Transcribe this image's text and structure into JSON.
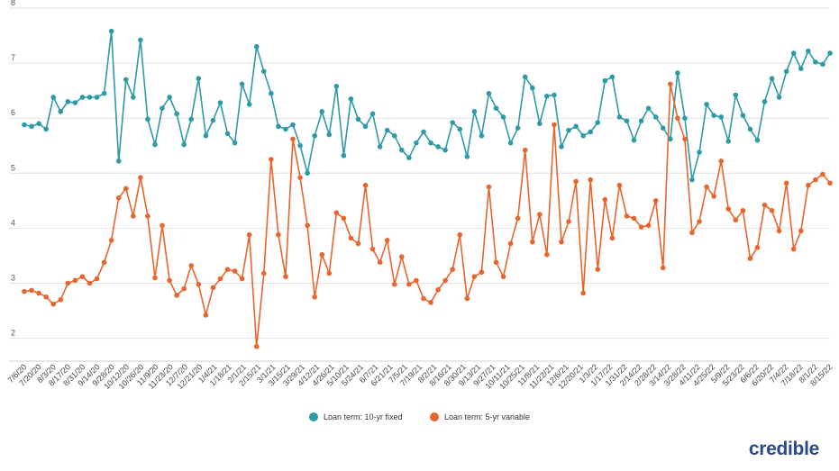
{
  "chart_data": {
    "type": "line",
    "y_ticks": [
      "2",
      "3",
      "4",
      "5",
      "6",
      "7",
      "8"
    ],
    "ylim": [
      1.6,
      8.0
    ],
    "grid": true,
    "legend_position": "bottom",
    "x_tick_labels": [
      "7/6/20",
      "7/20/20",
      "8/3/20",
      "8/17/20",
      "8/31/20",
      "9/14/20",
      "9/28/20",
      "10/12/20",
      "10/26/20",
      "11/9/20",
      "11/23/20",
      "12/7/20",
      "12/21/20",
      "1/4/21",
      "1/18/21",
      "2/1/21",
      "2/15/21",
      "3/1/21",
      "3/15/21",
      "3/29/21",
      "4/12/21",
      "4/26/21",
      "5/10/21",
      "5/24/21",
      "6/7/21",
      "6/21/21",
      "7/5/21",
      "7/19/21",
      "8/2/21",
      "8/16/21",
      "8/30/21",
      "9/13/21",
      "9/27/21",
      "10/11/21",
      "10/25/21",
      "11/8/21",
      "11/22/21",
      "12/6/21",
      "12/20/21",
      "1/3/22",
      "1/17/22",
      "1/31/22",
      "2/14/22",
      "2/28/22",
      "3/14/22",
      "3/28/22",
      "4/11/22",
      "4/25/22",
      "5/9/22",
      "5/23/22",
      "6/6/22",
      "6/20/22",
      "7/4/22",
      "7/18/22",
      "8/1/22",
      "8/15/22"
    ],
    "series": [
      {
        "name": "Loan term: 10-yr fixed",
        "color": "#2e9aa7",
        "values": [
          5.88,
          5.85,
          5.9,
          5.8,
          6.38,
          6.12,
          6.3,
          6.28,
          6.38,
          6.38,
          6.38,
          6.45,
          7.58,
          5.22,
          6.7,
          6.38,
          7.42,
          5.98,
          5.52,
          6.18,
          6.38,
          6.08,
          5.52,
          5.98,
          6.72,
          5.68,
          5.96,
          6.28,
          5.72,
          5.55,
          6.62,
          6.25,
          7.3,
          6.85,
          6.45,
          5.85,
          5.8,
          5.88,
          5.5,
          5.0,
          5.68,
          6.12,
          5.7,
          6.58,
          5.32,
          6.35,
          5.98,
          5.85,
          6.08,
          5.48,
          5.78,
          5.68,
          5.42,
          5.28,
          5.55,
          5.75,
          5.55,
          5.48,
          5.42,
          5.92,
          5.8,
          5.3,
          6.12,
          5.68,
          6.45,
          6.18,
          6.02,
          5.55,
          5.82,
          6.75,
          6.55,
          5.9,
          6.4,
          6.42,
          5.48,
          5.78,
          5.85,
          5.68,
          5.75,
          5.92,
          6.68,
          6.75,
          6.02,
          5.95,
          5.6,
          5.95,
          6.18,
          6.02,
          5.82,
          5.62,
          6.82,
          6.0,
          4.88,
          5.38,
          6.25,
          6.05,
          6.02,
          5.58,
          6.42,
          6.05,
          5.8,
          5.6,
          6.3,
          6.72,
          6.38,
          6.85,
          7.18,
          6.9,
          7.22,
          7.02,
          6.98,
          7.18
        ]
      },
      {
        "name": "Loan term: 5-yr variable",
        "color": "#e8662e",
        "values": [
          2.85,
          2.87,
          2.82,
          2.75,
          2.62,
          2.7,
          3.0,
          3.05,
          3.12,
          3.0,
          3.08,
          3.38,
          3.78,
          4.55,
          4.72,
          4.22,
          4.92,
          4.22,
          3.1,
          4.05,
          3.05,
          2.78,
          2.9,
          3.32,
          2.98,
          2.42,
          2.92,
          3.08,
          3.25,
          3.22,
          3.08,
          3.88,
          1.85,
          3.18,
          5.25,
          3.88,
          3.12,
          5.62,
          4.92,
          4.05,
          2.75,
          3.52,
          3.18,
          4.28,
          4.18,
          3.82,
          3.72,
          4.78,
          3.62,
          3.38,
          3.78,
          2.98,
          3.48,
          2.98,
          3.05,
          2.72,
          2.65,
          2.88,
          3.05,
          3.25,
          3.88,
          2.72,
          3.12,
          3.2,
          4.75,
          3.38,
          3.12,
          3.72,
          4.18,
          5.42,
          3.75,
          4.25,
          3.52,
          5.88,
          3.75,
          4.12,
          4.85,
          2.82,
          4.88,
          3.25,
          4.52,
          3.82,
          4.78,
          4.22,
          4.18,
          4.02,
          4.05,
          4.5,
          3.28,
          6.62,
          6.0,
          5.62,
          3.92,
          4.12,
          4.75,
          4.58,
          5.22,
          4.35,
          4.15,
          4.32,
          3.45,
          3.65,
          4.42,
          4.32,
          3.95,
          4.82,
          3.62,
          3.95,
          4.78,
          4.88,
          4.98,
          4.82
        ]
      }
    ]
  },
  "brand_text": "credible"
}
